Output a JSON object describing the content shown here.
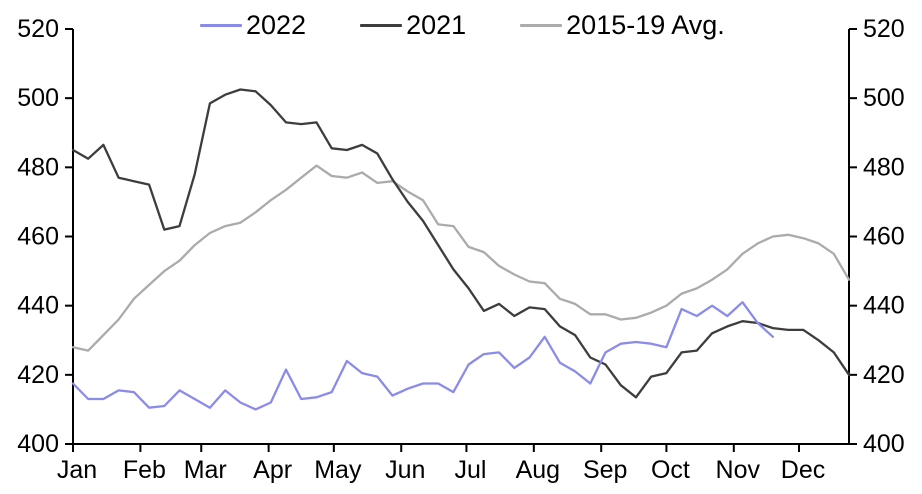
{
  "chart_data": {
    "type": "line",
    "title": "",
    "xlabel": "",
    "ylabel": "",
    "ylim": [
      400,
      520
    ],
    "y_ticks": [
      400,
      420,
      440,
      460,
      480,
      500,
      520
    ],
    "grid": false,
    "legend_position": "top",
    "axes_shown": [
      "left",
      "right",
      "bottom"
    ],
    "x_unit": "weekly",
    "month_labels": [
      "Jan",
      "Feb",
      "Mar",
      "Apr",
      "May",
      "Jun",
      "Jul",
      "Aug",
      "Sep",
      "Oct",
      "Nov",
      "Dec"
    ],
    "series": [
      {
        "name": "2015-19 Avg.",
        "color": "#ababab",
        "values": [
          428,
          427,
          431.5,
          436,
          442,
          446,
          450,
          453,
          457.5,
          461,
          463,
          464,
          467,
          470.5,
          473.5,
          477,
          480.5,
          477.5,
          477,
          478.5,
          475.5,
          476,
          473,
          470.5,
          463.5,
          463,
          457,
          455.5,
          451.5,
          449,
          447,
          446.5,
          442,
          440.5,
          437.5,
          437.5,
          436,
          436.5,
          438,
          440,
          443.5,
          445,
          447.5,
          450.5,
          455,
          458,
          460,
          460.5,
          459.5,
          458,
          455,
          447.5
        ]
      },
      {
        "name": "2021",
        "color": "#3d3d3d",
        "values": [
          485,
          482.5,
          486.5,
          477,
          476,
          475,
          462,
          463,
          478,
          498.5,
          501,
          502.5,
          502,
          498,
          493,
          492.5,
          493,
          485.5,
          485,
          486.5,
          484,
          476.5,
          470,
          464.5,
          457.5,
          450.5,
          445,
          438.5,
          440.5,
          437,
          439.5,
          439,
          434,
          431.5,
          425,
          423,
          417,
          413.5,
          419.5,
          420.5,
          426.5,
          427,
          432,
          434,
          435.5,
          435,
          433.5,
          433,
          433,
          430,
          426.5,
          420
        ]
      },
      {
        "name": "2022",
        "color": "#8b8bea",
        "values": [
          417.5,
          413,
          413,
          415.5,
          415,
          410.5,
          411,
          415.5,
          413,
          410.5,
          415.5,
          412,
          410,
          412,
          421.5,
          413,
          413.5,
          415,
          424,
          420.5,
          419.5,
          414,
          416,
          417.5,
          417.5,
          415,
          423,
          426,
          426.5,
          422,
          425,
          431,
          423.5,
          421,
          417.5,
          426.5,
          429,
          429.5,
          429,
          428,
          439,
          437,
          440,
          437,
          441,
          435,
          431
        ]
      }
    ],
    "legend_order": [
      "2022",
      "2021",
      "2015-19 Avg."
    ]
  },
  "colors": {
    "background": "#ffffff",
    "axis": "#000000",
    "text": "#000000",
    "series_2022": "#8b8bea",
    "series_2021": "#3d3d3d",
    "series_avg": "#ababab"
  }
}
